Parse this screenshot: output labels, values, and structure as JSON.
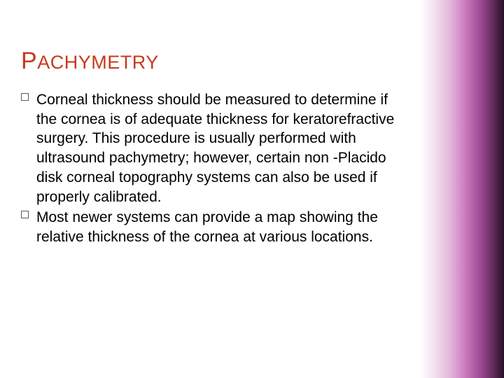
{
  "slide": {
    "title_first": "P",
    "title_rest": "ACHYMETRY",
    "title_color": "#c43b1d",
    "title_fontsize_first": 34,
    "title_fontsize_rest": 27,
    "body_fontsize": 21,
    "body_color": "#000000",
    "bullet_border_color": "#595959",
    "background_color": "#ffffff",
    "gradient_colors": [
      "#ffffff",
      "#f5e6f2",
      "#e4b8dc",
      "#c878bd",
      "#9e4a94",
      "#6b2f63",
      "#3f1a3a",
      "#2a1026"
    ],
    "bullets": [
      "Corneal thickness should be measured to determine if the cornea is of adequate thickness for keratorefractive surgery. This procedure is usually performed with ultrasound pachymetry; however, certain non -Placido disk corneal topography systems can also be used if properly calibrated.",
      " Most newer systems can provide a map showing the relative thickness of the cornea at various locations."
    ]
  }
}
